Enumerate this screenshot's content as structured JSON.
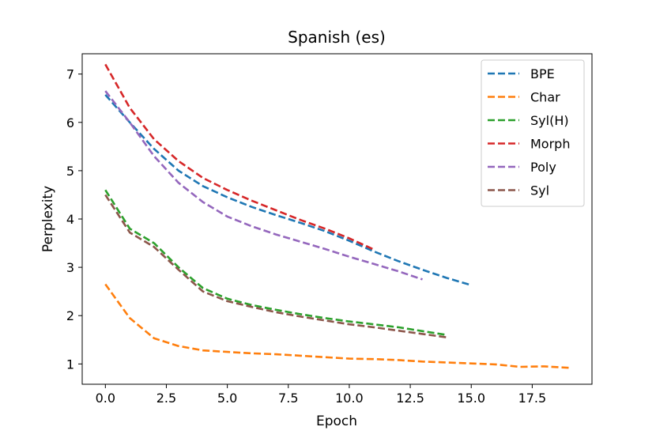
{
  "chart_data": {
    "type": "line",
    "title": "Spanish (es)",
    "xlabel": "Epoch",
    "ylabel": "Perplexity",
    "xlim": [
      -0.95,
      19.95
    ],
    "ylim": [
      0.58,
      7.42
    ],
    "xticks": [
      0.0,
      2.5,
      5.0,
      7.5,
      10.0,
      12.5,
      15.0,
      17.5
    ],
    "xtick_labels": [
      "0.0",
      "2.5",
      "5.0",
      "7.5",
      "10.0",
      "12.5",
      "15.0",
      "17.5"
    ],
    "yticks": [
      1,
      2,
      3,
      4,
      5,
      6,
      7
    ],
    "ytick_labels": [
      "1",
      "2",
      "3",
      "4",
      "5",
      "6",
      "7"
    ],
    "grid": false,
    "legend_position": "top-right",
    "line_style": "dashed",
    "series": [
      {
        "name": "BPE",
        "color": "#1f77b4",
        "x": [
          0,
          1,
          2,
          3,
          4,
          5,
          6,
          7,
          8,
          9,
          10,
          11,
          12,
          13,
          14,
          15
        ],
        "y": [
          6.57,
          6.0,
          5.45,
          5.0,
          4.68,
          4.45,
          4.25,
          4.08,
          3.92,
          3.75,
          3.55,
          3.33,
          3.13,
          2.95,
          2.78,
          2.63
        ]
      },
      {
        "name": "Char",
        "color": "#ff7f0e",
        "x": [
          0,
          1,
          2,
          3,
          4,
          5,
          6,
          7,
          8,
          9,
          10,
          11,
          12,
          13,
          14,
          15,
          16,
          17,
          18,
          19
        ],
        "y": [
          2.65,
          1.95,
          1.53,
          1.37,
          1.28,
          1.25,
          1.22,
          1.2,
          1.17,
          1.14,
          1.11,
          1.1,
          1.08,
          1.05,
          1.03,
          1.01,
          0.99,
          0.94,
          0.95,
          0.92
        ]
      },
      {
        "name": "Syl(H)",
        "color": "#2ca02c",
        "x": [
          0,
          1,
          2,
          3,
          4,
          5,
          6,
          7,
          8,
          9,
          10,
          11,
          12,
          13,
          14
        ],
        "y": [
          4.6,
          3.8,
          3.5,
          3.0,
          2.57,
          2.35,
          2.22,
          2.12,
          2.03,
          1.95,
          1.88,
          1.82,
          1.76,
          1.68,
          1.6
        ]
      },
      {
        "name": "Morph",
        "color": "#d62728",
        "x": [
          0,
          1,
          2,
          3,
          4,
          5,
          6,
          7,
          8,
          9,
          10,
          11
        ],
        "y": [
          7.2,
          6.3,
          5.65,
          5.2,
          4.85,
          4.6,
          4.38,
          4.18,
          3.98,
          3.8,
          3.6,
          3.37
        ]
      },
      {
        "name": "Poly",
        "color": "#9467bd",
        "x": [
          0,
          1,
          2,
          3,
          4,
          5,
          6,
          7,
          8,
          9,
          10,
          11,
          12,
          13
        ],
        "y": [
          6.65,
          6.0,
          5.3,
          4.75,
          4.35,
          4.05,
          3.85,
          3.68,
          3.53,
          3.38,
          3.22,
          3.07,
          2.92,
          2.75
        ]
      },
      {
        "name": "Syl",
        "color": "#8c564b",
        "x": [
          0,
          1,
          2,
          3,
          4,
          5,
          6,
          7,
          8,
          9,
          10,
          11,
          12,
          13,
          14
        ],
        "y": [
          4.5,
          3.72,
          3.42,
          2.95,
          2.5,
          2.3,
          2.18,
          2.07,
          1.98,
          1.9,
          1.82,
          1.76,
          1.69,
          1.62,
          1.55
        ]
      }
    ]
  }
}
